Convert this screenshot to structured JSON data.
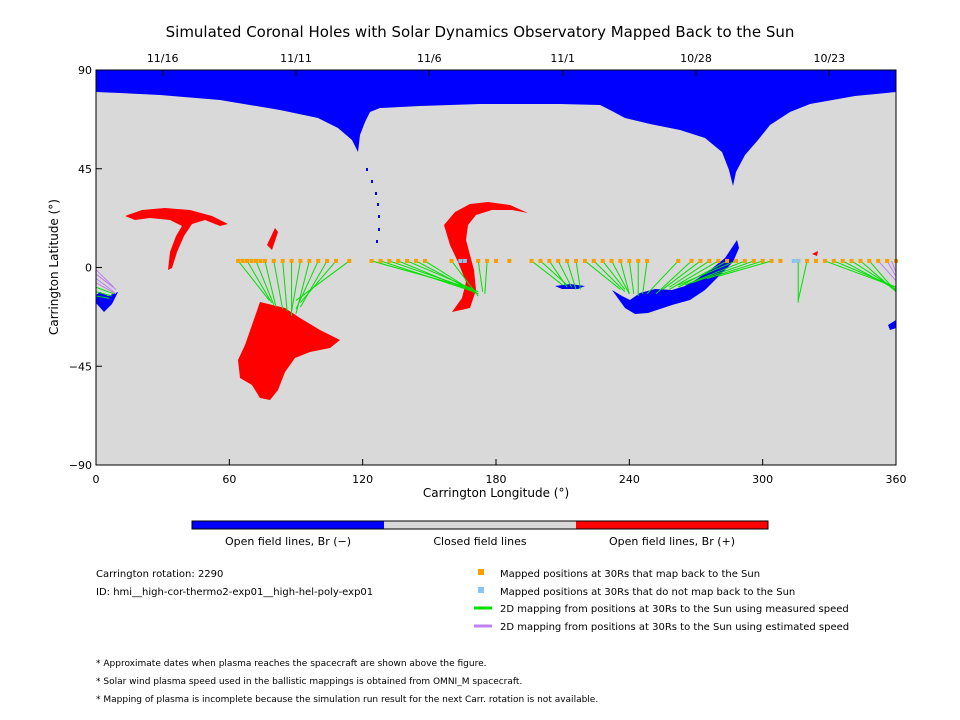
{
  "chart_data": {
    "type": "scatter",
    "title": "Simulated Coronal Holes with Solar Dynamics Observatory Mapped Back to the Sun",
    "xlabel": "Carrington Longitude (°)",
    "ylabel": "Carrington Latitude (°)",
    "xlim": [
      0,
      360
    ],
    "ylim": [
      -90,
      90
    ],
    "xticks": [
      0,
      60,
      120,
      180,
      240,
      300,
      360
    ],
    "yticks": [
      -90,
      -45,
      0,
      45,
      90
    ],
    "grid": false,
    "top_axis": {
      "labels": [
        "11/16",
        "11/11",
        "11/6",
        "11/1",
        "10/28",
        "10/23"
      ],
      "longitudes": [
        30,
        90,
        150,
        210,
        270,
        330
      ]
    },
    "colorbar": {
      "segments": [
        {
          "label": "Open field lines, Br (−)",
          "color": "#0000ff"
        },
        {
          "label": "Closed field lines",
          "color": "#d9d9d9"
        },
        {
          "label": "Open field lines, Br (+)",
          "color": "#ff0000"
        }
      ]
    },
    "colors": {
      "negative": "#0000ff",
      "positive": "#ff0000",
      "closed": "#d9d9d9",
      "mapped": "#f5a000",
      "unmapped": "#87c5f0",
      "measured": "#00e000",
      "estimated": "#c080f0"
    },
    "series": [
      {
        "name": "Mapped positions at 30Rs that map back to the Sun",
        "kind": "points",
        "color": "#f5a000",
        "lat": 3,
        "lon": [
          64,
          66,
          68,
          70,
          72,
          74,
          76,
          80,
          84,
          88,
          92,
          96,
          100,
          104,
          108,
          114,
          124,
          128,
          132,
          136,
          140,
          144,
          148,
          160,
          172,
          176,
          180,
          186,
          196,
          200,
          204,
          208,
          212,
          216,
          220,
          224,
          228,
          232,
          236,
          240,
          244,
          248,
          262,
          268,
          272,
          276,
          280,
          284,
          288,
          292,
          296,
          300,
          304,
          308,
          316,
          320,
          324,
          328,
          332,
          336,
          340,
          344,
          348,
          352,
          356,
          360
        ]
      },
      {
        "name": "Mapped positions at 30Rs that do not map back to the Sun",
        "kind": "points",
        "color": "#87c5f0",
        "lat": 3,
        "lon": [
          164,
          166,
          314,
          316
        ]
      },
      {
        "name": "2D mapping from positions at 30Rs to the Sun using measured speed",
        "kind": "lines",
        "color": "#00e000",
        "lines": [
          [
            64,
            3,
            78,
            -15
          ],
          [
            68,
            3,
            79,
            -16
          ],
          [
            72,
            3,
            80,
            -17
          ],
          [
            76,
            3,
            81,
            -18
          ],
          [
            80,
            3,
            84,
            -19
          ],
          [
            84,
            3,
            86,
            -20
          ],
          [
            88,
            3,
            88,
            -22
          ],
          [
            92,
            3,
            88,
            -20
          ],
          [
            96,
            3,
            90,
            -21
          ],
          [
            100,
            3,
            90,
            -19
          ],
          [
            104,
            3,
            92,
            -18
          ],
          [
            108,
            3,
            92,
            -16
          ],
          [
            114,
            3,
            90,
            -15
          ],
          [
            124,
            3,
            170,
            -10
          ],
          [
            128,
            3,
            170,
            -11
          ],
          [
            132,
            3,
            172,
            -11
          ],
          [
            136,
            3,
            172,
            -12
          ],
          [
            140,
            3,
            170,
            -10
          ],
          [
            144,
            3,
            172,
            -12
          ],
          [
            148,
            3,
            170,
            -11
          ],
          [
            160,
            3,
            172,
            -13
          ],
          [
            172,
            3,
            174,
            -11
          ],
          [
            176,
            3,
            175,
            -12
          ],
          [
            196,
            3,
            210,
            -8
          ],
          [
            200,
            3,
            212,
            -8
          ],
          [
            204,
            3,
            212,
            -9
          ],
          [
            208,
            3,
            214,
            -9
          ],
          [
            212,
            3,
            216,
            -10
          ],
          [
            216,
            3,
            218,
            -10
          ],
          [
            220,
            3,
            236,
            -10
          ],
          [
            224,
            3,
            238,
            -11
          ],
          [
            228,
            3,
            238,
            -10
          ],
          [
            232,
            3,
            240,
            -12
          ],
          [
            236,
            3,
            240,
            -12
          ],
          [
            240,
            3,
            242,
            -12
          ],
          [
            244,
            3,
            244,
            -13
          ],
          [
            248,
            3,
            246,
            -12
          ],
          [
            262,
            3,
            248,
            -12
          ],
          [
            268,
            3,
            252,
            -12
          ],
          [
            272,
            3,
            255,
            -10
          ],
          [
            276,
            3,
            258,
            -9
          ],
          [
            280,
            3,
            258,
            -10
          ],
          [
            284,
            3,
            262,
            -9
          ],
          [
            288,
            3,
            262,
            -8
          ],
          [
            292,
            3,
            265,
            -8
          ],
          [
            296,
            3,
            268,
            -7
          ],
          [
            300,
            3,
            275,
            -5
          ],
          [
            304,
            3,
            280,
            -4
          ],
          [
            316,
            3,
            316,
            -16
          ],
          [
            320,
            3,
            316,
            -15
          ],
          [
            328,
            3,
            360,
            -9
          ],
          [
            332,
            3,
            360,
            -9
          ],
          [
            336,
            3,
            360,
            -10
          ],
          [
            340,
            3,
            360,
            -10
          ],
          [
            344,
            3,
            360,
            -11
          ],
          [
            348,
            3,
            360,
            -11
          ],
          [
            0,
            -9,
            8,
            -12
          ],
          [
            0,
            -11,
            7,
            -13
          ],
          [
            0,
            -13,
            6,
            -14
          ]
        ]
      },
      {
        "name": "2D mapping from positions at 30Rs to the Sun using estimated speed",
        "kind": "lines",
        "color": "#c080f0",
        "lines": [
          [
            352,
            3,
            360,
            -6
          ],
          [
            356,
            3,
            360,
            -4
          ],
          [
            358,
            3,
            360,
            -2
          ],
          [
            0,
            -1,
            8,
            -9
          ],
          [
            0,
            -3,
            9,
            -10
          ],
          [
            0,
            -5,
            8,
            -11
          ],
          [
            0,
            -7,
            9,
            -12
          ]
        ]
      }
    ],
    "info": {
      "rotation": "Carrington rotation: 2290",
      "id": "ID: hmi__high-cor-thermo2-exp01__high-hel-poly-exp01"
    },
    "footnotes": [
      "* Approximate dates when plasma reaches the spacecraft are shown above the figure.",
      "* Solar wind plasma speed used in the ballistic mappings is obtained from OMNI_M spacecraft.",
      "* Mapping of plasma is incomplete because the simulation run result for the next Carr. rotation is not available."
    ]
  }
}
